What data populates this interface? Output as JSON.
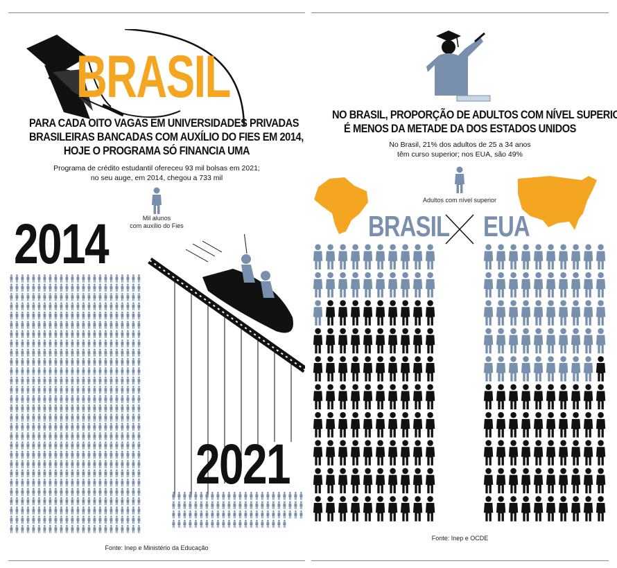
{
  "left": {
    "brand": "BRASIL",
    "headline_lines": [
      "PARA CADA OITO VAGAS EM UNIVERSIDADES PRIVADAS",
      "BRASILEIRAS BANCADAS COM AUXÍLIO DO FIES EM 2014,",
      "HOJE O PROGRAMA SÓ FINANCIA UMA"
    ],
    "subtitle_lines": [
      "Programa de crédito estudantil ofereceu 93 mil bolsas em 2021;",
      "no seu auge, em 2014, chegou a 733 mil"
    ],
    "legend_lines": [
      "Mil alunos",
      "com auxílio do Fies"
    ],
    "year_2014": "2014",
    "year_2021": "2021",
    "source": "Fonte: Inep e Ministério da Educação"
  },
  "right": {
    "headline_lines": [
      "NO BRASIL, PROPORÇÃO DE ADULTOS COM NÍVEL SUPERIOR",
      "É MENOS DA METADE DA DOS ESTADOS UNIDOS"
    ],
    "subtitle_lines": [
      "No Brasil, 21% dos adultos de 25 a 34 anos",
      "têm curso superior; nos EUA, são 49%"
    ],
    "legend": "Adultos com nível superior",
    "country_a": "BRASIL",
    "country_b": "EUA",
    "source": "Fonte: Inep e OCDE"
  },
  "colors": {
    "accent_yellow": "#f4a623",
    "figure_blue": "#7890ad",
    "figure_black": "#111111"
  },
  "icons": [
    "graduation-cap-icon",
    "graduate-figure-icon",
    "person-icon",
    "roller-coaster-icon",
    "brazil-map-icon",
    "usa-map-icon"
  ],
  "chart_data": [
    {
      "type": "pictogram",
      "unit": "Mil alunos com auxílio do Fies",
      "categories": [
        "2014",
        "2021"
      ],
      "values": [
        733,
        93
      ]
    },
    {
      "type": "pictogram",
      "unit": "Adultos com nível superior",
      "categories": [
        "BRASIL",
        "EUA"
      ],
      "values": [
        21,
        49
      ],
      "value_unit": "%"
    }
  ]
}
